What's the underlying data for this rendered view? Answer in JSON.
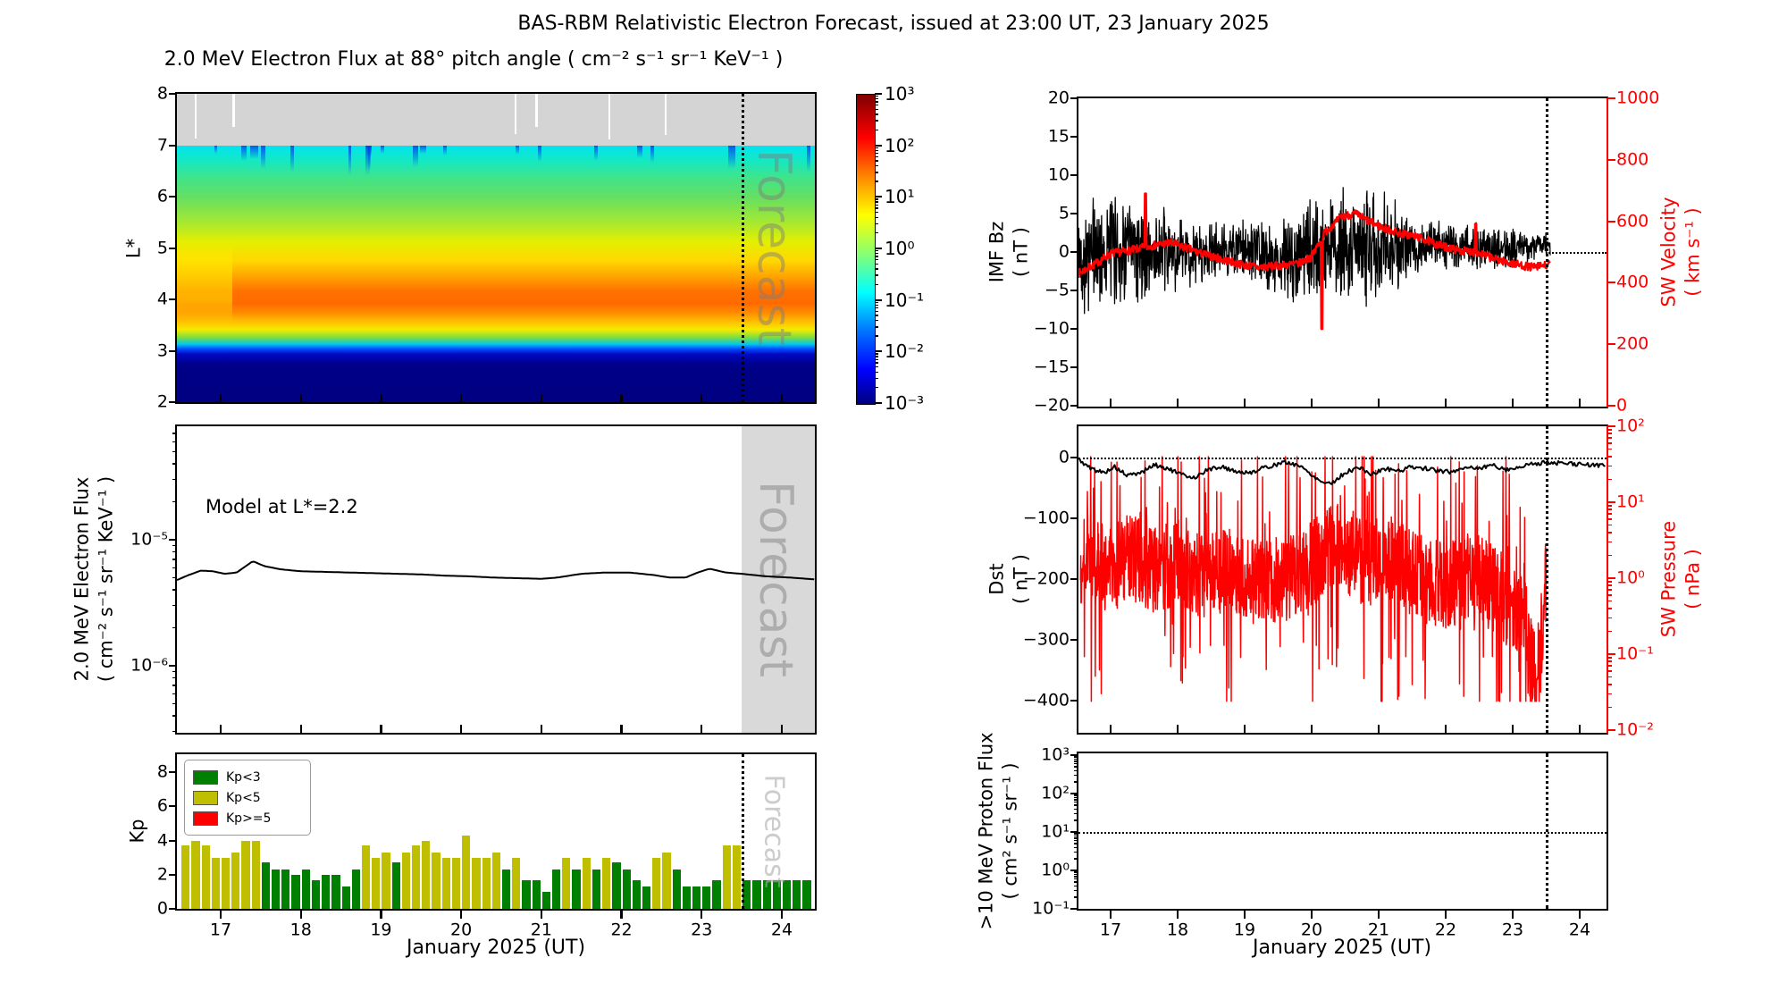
{
  "title": "BAS-RBM Relativistic Electron Forecast, issued at 23:00 UT, 23 January 2025",
  "forecast_label": "Forecast",
  "left_column": {
    "xlabel": "January 2025 (UT)",
    "xtick_labels": [
      "17",
      "18",
      "19",
      "20",
      "21",
      "22",
      "23",
      "24"
    ],
    "spectrogram": {
      "title": "2.0 MeV Electron Flux at 88° pitch angle ( cm⁻² s⁻¹ sr⁻¹ KeV⁻¹ )",
      "ylabel": "L*",
      "ytick_labels": [
        "8",
        "7",
        "6",
        "5",
        "4",
        "3",
        "2"
      ],
      "colorbar_tick_labels": [
        "10³",
        "10²",
        "10¹",
        "10⁰",
        "10⁻¹",
        "10⁻²",
        "10⁻³"
      ]
    },
    "model": {
      "ylabel_line1": "2.0 MeV Electron Flux",
      "ylabel_line2": "( cm⁻² s⁻¹ sr⁻¹ KeV⁻¹ )",
      "annotation": "Model at L*=2.2",
      "ytick_labels": [
        "10⁻⁵",
        "10⁻⁶"
      ]
    },
    "kp": {
      "ylabel": "Kp",
      "ytick_labels": [
        "8",
        "6",
        "4",
        "2",
        "0"
      ],
      "legend": [
        {
          "label": "Kp<3",
          "color": "#008000"
        },
        {
          "label": "Kp<5",
          "color": "#bfbf00"
        },
        {
          "label": "Kp>=5",
          "color": "#ff0000"
        }
      ]
    }
  },
  "right_column": {
    "xlabel": "January 2025 (UT)",
    "xtick_labels": [
      "17",
      "18",
      "19",
      "20",
      "21",
      "22",
      "23",
      "24"
    ],
    "imf_panel": {
      "ylabel_left_line1": "IMF Bz",
      "ylabel_left_line2": "( nT )",
      "left_tick_labels": [
        "20",
        "15",
        "10",
        "5",
        "0",
        "−5",
        "−10",
        "−15",
        "−20"
      ],
      "ylabel_right_line1": "SW Velocity",
      "ylabel_right_line2": "( km s⁻¹ )",
      "right_tick_labels": [
        "1000",
        "800",
        "600",
        "400",
        "200",
        "0"
      ],
      "accent_color": "#ff0000"
    },
    "dst_panel": {
      "ylabel_left_line1": "Dst",
      "ylabel_left_line2": "( nT )",
      "left_tick_labels": [
        "0",
        "−100",
        "−200",
        "−300",
        "−400"
      ],
      "ylabel_right_line1": "SW Pressure",
      "ylabel_right_line2": "( nPa )",
      "right_tick_labels": [
        "10²",
        "10¹",
        "10⁰",
        "10⁻¹",
        "10⁻²"
      ]
    },
    "proton_panel": {
      "ylabel_line1": ">10 MeV Proton Flux",
      "ylabel_line2": "( cm² s⁻¹ sr⁻¹ )",
      "left_tick_labels": [
        "10³",
        "10²",
        "10¹",
        "10⁰",
        "10⁻¹"
      ]
    }
  },
  "chart_data": [
    {
      "id": "electron_flux_spectrogram",
      "type": "heatmap",
      "title": "2.0 MeV Electron Flux at 88° pitch angle ( cm⁻² s⁻¹ sr⁻¹ KeV⁻¹ )",
      "xlabel": "January 2025 (UT)",
      "xlim": [
        16.45,
        24.41
      ],
      "ylabel": "L*",
      "ylim": [
        2,
        8
      ],
      "color_scale": "log",
      "clim": [
        0.001,
        1000
      ],
      "colormap": "jet",
      "nodata_band_Lstar": [
        7,
        8
      ],
      "forecast_start_day": 23.5,
      "profile_flux_vs_Lstar": {
        "7.0": 0.15,
        "6.5": 0.5,
        "6.0": 1.2,
        "5.5": 3,
        "5.0": 8,
        "4.5": 25,
        "4.2": 50,
        "4.0": 60,
        "3.7": 30,
        "3.4": 8,
        "3.2": 1,
        "3.05": 0.1,
        "3.0": 0.02,
        "2.8": 0.001,
        "2.0": 0.001
      },
      "data_gap_days": [
        16.69,
        17.16,
        20.68,
        20.94,
        21.85,
        22.55
      ]
    },
    {
      "id": "model_flux",
      "type": "line",
      "annotation": "Model at L*=2.2",
      "ylim_log10": [
        -6.53,
        -4.1
      ],
      "forecast_band_day": [
        23.5,
        24.414
      ],
      "anchors_day_log10flux": [
        [
          16.454,
          -5.32
        ],
        [
          16.6,
          -5.28
        ],
        [
          16.75,
          -5.245
        ],
        [
          16.9,
          -5.25
        ],
        [
          17.05,
          -5.27
        ],
        [
          17.2,
          -5.26
        ],
        [
          17.4,
          -5.17
        ],
        [
          17.55,
          -5.21
        ],
        [
          17.75,
          -5.235
        ],
        [
          18.0,
          -5.25
        ],
        [
          18.3,
          -5.255
        ],
        [
          18.6,
          -5.26
        ],
        [
          18.9,
          -5.265
        ],
        [
          19.2,
          -5.27
        ],
        [
          19.5,
          -5.275
        ],
        [
          19.8,
          -5.285
        ],
        [
          20.1,
          -5.29
        ],
        [
          20.4,
          -5.3
        ],
        [
          20.7,
          -5.305
        ],
        [
          21.0,
          -5.31
        ],
        [
          21.2,
          -5.3
        ],
        [
          21.5,
          -5.27
        ],
        [
          21.8,
          -5.26
        ],
        [
          22.1,
          -5.26
        ],
        [
          22.4,
          -5.28
        ],
        [
          22.6,
          -5.3
        ],
        [
          22.8,
          -5.3
        ],
        [
          22.95,
          -5.26
        ],
        [
          23.1,
          -5.23
        ],
        [
          23.3,
          -5.26
        ],
        [
          23.5,
          -5.27
        ],
        [
          23.8,
          -5.29
        ],
        [
          24.1,
          -5.3
        ],
        [
          24.414,
          -5.315
        ]
      ]
    },
    {
      "id": "kp_bars",
      "type": "bar",
      "ylim": [
        0,
        9
      ],
      "bar_width_day": 0.125,
      "forecast_start_day": 23.5,
      "bars": [
        [
          16.5,
          3.7,
          "y"
        ],
        [
          16.625,
          4.0,
          "y"
        ],
        [
          16.75,
          3.7,
          "y"
        ],
        [
          16.875,
          3.0,
          "y"
        ],
        [
          17.0,
          3.0,
          "y"
        ],
        [
          17.125,
          3.3,
          "y"
        ],
        [
          17.25,
          4.0,
          "y"
        ],
        [
          17.375,
          4.0,
          "y"
        ],
        [
          17.5,
          2.7,
          "g"
        ],
        [
          17.625,
          2.3,
          "g"
        ],
        [
          17.75,
          2.3,
          "g"
        ],
        [
          17.875,
          2.0,
          "g"
        ],
        [
          18.0,
          2.3,
          "g"
        ],
        [
          18.125,
          1.7,
          "g"
        ],
        [
          18.25,
          2.0,
          "g"
        ],
        [
          18.375,
          2.0,
          "g"
        ],
        [
          18.5,
          1.3,
          "g"
        ],
        [
          18.625,
          2.3,
          "g"
        ],
        [
          18.75,
          3.7,
          "y"
        ],
        [
          18.875,
          3.0,
          "y"
        ],
        [
          19.0,
          3.3,
          "y"
        ],
        [
          19.125,
          2.7,
          "g"
        ],
        [
          19.25,
          3.3,
          "y"
        ],
        [
          19.375,
          3.7,
          "y"
        ],
        [
          19.5,
          4.0,
          "y"
        ],
        [
          19.625,
          3.3,
          "y"
        ],
        [
          19.75,
          3.0,
          "y"
        ],
        [
          19.875,
          3.0,
          "y"
        ],
        [
          20.0,
          4.3,
          "y"
        ],
        [
          20.125,
          3.0,
          "y"
        ],
        [
          20.25,
          3.0,
          "y"
        ],
        [
          20.375,
          3.3,
          "y"
        ],
        [
          20.5,
          2.3,
          "g"
        ],
        [
          20.625,
          3.0,
          "y"
        ],
        [
          20.75,
          1.7,
          "g"
        ],
        [
          20.875,
          1.7,
          "g"
        ],
        [
          21.0,
          1.0,
          "g"
        ],
        [
          21.125,
          2.3,
          "g"
        ],
        [
          21.25,
          3.0,
          "y"
        ],
        [
          21.375,
          2.3,
          "g"
        ],
        [
          21.5,
          3.0,
          "y"
        ],
        [
          21.625,
          2.3,
          "g"
        ],
        [
          21.75,
          3.0,
          "y"
        ],
        [
          21.875,
          2.7,
          "g"
        ],
        [
          22.0,
          2.3,
          "g"
        ],
        [
          22.125,
          1.7,
          "g"
        ],
        [
          22.25,
          1.3,
          "g"
        ],
        [
          22.375,
          3.0,
          "y"
        ],
        [
          22.5,
          3.3,
          "y"
        ],
        [
          22.625,
          2.3,
          "g"
        ],
        [
          22.75,
          1.3,
          "g"
        ],
        [
          22.875,
          1.3,
          "g"
        ],
        [
          23.0,
          1.3,
          "g"
        ],
        [
          23.125,
          1.7,
          "g"
        ],
        [
          23.25,
          3.7,
          "y"
        ],
        [
          23.375,
          3.7,
          "y"
        ],
        [
          23.5,
          1.7,
          "g"
        ],
        [
          23.625,
          1.7,
          "g"
        ],
        [
          23.75,
          1.7,
          "g"
        ],
        [
          23.875,
          1.7,
          "g"
        ],
        [
          24.0,
          1.7,
          "g"
        ],
        [
          24.125,
          1.7,
          "g"
        ],
        [
          24.25,
          1.7,
          "g"
        ]
      ]
    },
    {
      "id": "imf_bz_sw_velocity",
      "type": "line",
      "x_range_day": [
        16.52,
        23.56
      ],
      "forecast_start_day": 23.5,
      "bz_ylim": [
        -20,
        20
      ],
      "bz_mean_anchors": [
        [
          16.52,
          -1
        ],
        [
          17.0,
          0.5
        ],
        [
          17.5,
          0
        ],
        [
          18.0,
          -0.5
        ],
        [
          18.5,
          0
        ],
        [
          19.0,
          0.3
        ],
        [
          19.5,
          -1
        ],
        [
          20.0,
          0
        ],
        [
          20.5,
          0.8
        ],
        [
          21.0,
          1
        ],
        [
          21.5,
          0.5
        ],
        [
          22.0,
          1
        ],
        [
          22.5,
          0.5
        ],
        [
          23.0,
          0.5
        ],
        [
          23.56,
          1
        ]
      ],
      "bz_noise_amp_anchors": [
        [
          16.52,
          6.5
        ],
        [
          16.8,
          7
        ],
        [
          17.2,
          6.5
        ],
        [
          17.6,
          6
        ],
        [
          18.0,
          4.5
        ],
        [
          18.5,
          3.5
        ],
        [
          19.0,
          3.5
        ],
        [
          19.4,
          4
        ],
        [
          19.7,
          5.5
        ],
        [
          20.0,
          6
        ],
        [
          20.3,
          6.5
        ],
        [
          20.7,
          7.2
        ],
        [
          21.0,
          7
        ],
        [
          21.3,
          5
        ],
        [
          21.6,
          3
        ],
        [
          22.0,
          3
        ],
        [
          22.4,
          3.2
        ],
        [
          22.8,
          2.5
        ],
        [
          23.2,
          2
        ],
        [
          23.56,
          1.5
        ]
      ],
      "forecast_dotted_bz": 0,
      "velocity_ylim": [
        0,
        1000
      ],
      "velocity_anchors": [
        [
          16.52,
          430
        ],
        [
          16.8,
          465
        ],
        [
          17.0,
          495
        ],
        [
          17.3,
          505
        ],
        [
          17.6,
          520
        ],
        [
          17.9,
          530
        ],
        [
          18.1,
          515
        ],
        [
          18.35,
          495
        ],
        [
          18.6,
          480
        ],
        [
          18.9,
          462
        ],
        [
          19.2,
          450
        ],
        [
          19.5,
          455
        ],
        [
          19.8,
          462
        ],
        [
          20.0,
          485
        ],
        [
          20.2,
          565
        ],
        [
          20.45,
          615
        ],
        [
          20.65,
          625
        ],
        [
          20.85,
          600
        ],
        [
          21.05,
          580
        ],
        [
          21.3,
          562
        ],
        [
          21.6,
          548
        ],
        [
          21.9,
          522
        ],
        [
          22.2,
          505
        ],
        [
          22.45,
          500
        ],
        [
          22.7,
          480
        ],
        [
          23.0,
          462
        ],
        [
          23.3,
          450
        ],
        [
          23.56,
          460
        ]
      ],
      "velocity_spikes": [
        [
          17.52,
          690
        ],
        [
          20.15,
          250
        ],
        [
          22.45,
          592
        ]
      ]
    },
    {
      "id": "dst_sw_pressure",
      "type": "line",
      "forecast_start_day": 23.5,
      "dst_ylim": [
        51,
        -453
      ],
      "dst_zero_dotted_line": 0,
      "dst_anchors": [
        [
          16.52,
          -3
        ],
        [
          16.7,
          -18
        ],
        [
          16.9,
          -25
        ],
        [
          17.05,
          -15
        ],
        [
          17.25,
          -30
        ],
        [
          17.45,
          -25
        ],
        [
          17.65,
          -12
        ],
        [
          17.85,
          -18
        ],
        [
          18.05,
          -28
        ],
        [
          18.25,
          -33
        ],
        [
          18.45,
          -20
        ],
        [
          18.65,
          -15
        ],
        [
          18.85,
          -22
        ],
        [
          19.05,
          -26
        ],
        [
          19.25,
          -18
        ],
        [
          19.45,
          -12
        ],
        [
          19.6,
          -8
        ],
        [
          19.8,
          -12
        ],
        [
          20.0,
          -28
        ],
        [
          20.15,
          -40
        ],
        [
          20.3,
          -42
        ],
        [
          20.5,
          -25
        ],
        [
          20.7,
          -16
        ],
        [
          20.9,
          -28
        ],
        [
          21.1,
          -18
        ],
        [
          21.3,
          -22
        ],
        [
          21.5,
          -15
        ],
        [
          21.7,
          -18
        ],
        [
          21.9,
          -22
        ],
        [
          22.1,
          -24
        ],
        [
          22.3,
          -15
        ],
        [
          22.5,
          -18
        ],
        [
          22.7,
          -12
        ],
        [
          22.9,
          -20
        ],
        [
          23.1,
          -16
        ],
        [
          23.3,
          -10
        ],
        [
          23.5,
          -8
        ],
        [
          23.8,
          -10
        ],
        [
          24.1,
          -12
        ],
        [
          24.38,
          -13
        ]
      ],
      "pressure_ylim_log10": [
        -2.04,
        2
      ],
      "pressure_x_range_day": [
        16.55,
        23.5
      ],
      "pressure_log10_anchors": [
        [
          16.55,
          0.25
        ],
        [
          17.0,
          0.1
        ],
        [
          17.3,
          0.3
        ],
        [
          17.6,
          0.1
        ],
        [
          18.0,
          0.2
        ],
        [
          18.4,
          0.0
        ],
        [
          18.8,
          0.1
        ],
        [
          19.2,
          -0.1
        ],
        [
          19.6,
          0.0
        ],
        [
          20.0,
          0.2
        ],
        [
          20.4,
          0.45
        ],
        [
          20.8,
          0.2
        ],
        [
          21.2,
          0.3
        ],
        [
          21.6,
          0.0
        ],
        [
          22.0,
          -0.1
        ],
        [
          22.4,
          0.05
        ],
        [
          22.8,
          -0.2
        ],
        [
          23.1,
          -0.5
        ],
        [
          23.35,
          -0.85
        ],
        [
          23.5,
          0.0
        ]
      ]
    },
    {
      "id": "proton_flux",
      "type": "line",
      "ylim_log10": [
        -1,
        3.05
      ],
      "threshold_dotted_line": 10,
      "forecast_start_day": 23.5,
      "series": "no proton flux visible (below 10⁻¹)"
    }
  ]
}
